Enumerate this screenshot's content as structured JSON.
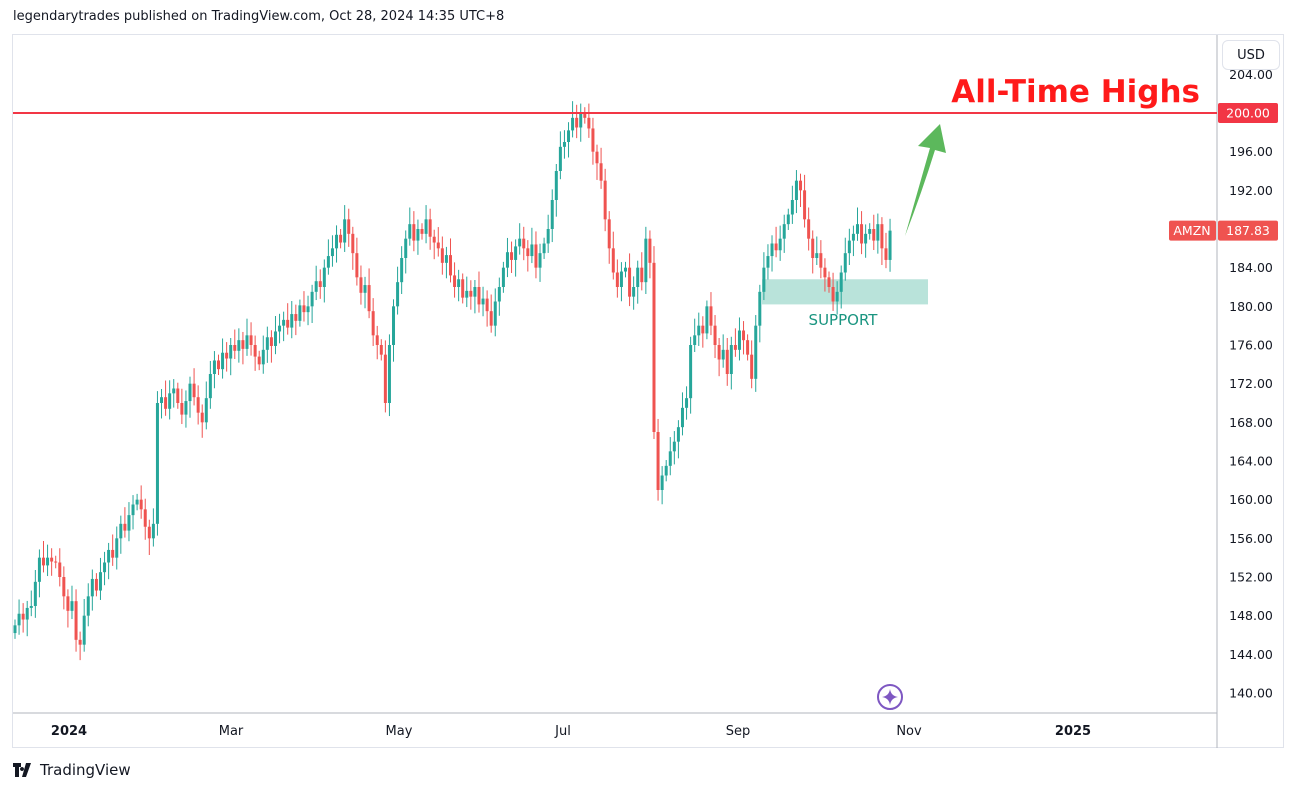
{
  "header": {
    "published": "legendarytrades published on TradingView.com, Oct 28, 2024 14:35 UTC+8"
  },
  "currency_button": "USD",
  "footer": {
    "brand": "TradingView"
  },
  "colors": {
    "up": "#26a69a",
    "down": "#ef5350",
    "ath_line": "#f23645",
    "ath_text": "#ff1a1a",
    "support_zone": "#b9e3da",
    "support_text": "#1a9580",
    "arrow": "#5cb85c",
    "sparkle": "#7e57c2"
  },
  "chart_data": {
    "type": "candlestick",
    "symbol": "AMZN",
    "last_price": "187.83",
    "ylim": [
      137,
      206
    ],
    "y_ticks": [
      "204.00",
      "196.00",
      "192.00",
      "184.00",
      "180.00",
      "176.00",
      "172.00",
      "168.00",
      "164.00",
      "160.00",
      "156.00",
      "152.00",
      "148.00",
      "144.00",
      "140.00"
    ],
    "x_ticks": [
      "2024",
      "Mar",
      "May",
      "Jul",
      "Sep",
      "Nov",
      "2025"
    ],
    "closes": [
      147,
      148.2,
      147.6,
      148.8,
      149,
      151.5,
      154,
      153.2,
      154,
      153.6,
      153.5,
      152,
      150,
      148.5,
      149.5,
      145.5,
      145,
      148,
      150,
      151.8,
      150.6,
      152.5,
      153.5,
      154.8,
      154,
      156,
      157.5,
      156.8,
      158.4,
      159.5,
      160,
      159,
      157.2,
      156,
      157.5,
      170,
      170.6,
      169.4,
      171,
      171.5,
      170,
      168.8,
      170.2,
      172,
      170.6,
      169,
      168,
      170.5,
      173,
      174.4,
      173.5,
      175.2,
      174.6,
      176,
      175.4,
      176.5,
      175.6,
      177,
      176,
      174.8,
      174,
      175.5,
      176.8,
      175.9,
      177.4,
      178,
      178.6,
      177.8,
      179.2,
      178.5,
      180.1,
      179.4,
      180,
      181.5,
      182.6,
      182,
      184,
      185.2,
      186,
      187.4,
      186.6,
      189,
      187.5,
      185.5,
      183,
      181.4,
      182.2,
      179.5,
      177,
      176,
      175,
      170,
      176,
      180,
      182.5,
      185,
      187,
      188.5,
      186.8,
      188,
      187.5,
      189,
      187.2,
      186.6,
      186,
      184.5,
      185.3,
      183.2,
      182,
      182.8,
      180.9,
      181.6,
      181,
      182,
      180.2,
      180.8,
      179.5,
      178,
      180.5,
      182,
      184,
      185.6,
      184.8,
      186.2,
      187,
      186,
      185.2,
      186.4,
      184,
      185.5,
      186.5,
      188,
      191,
      194,
      196.5,
      197,
      198.2,
      199.5,
      198.5,
      200,
      199.5,
      198.4,
      196,
      194.8,
      193,
      189,
      186,
      183.5,
      182,
      183.6,
      184,
      181,
      182,
      184,
      182.5,
      187,
      184.5,
      167,
      161,
      162.5,
      163.5,
      165,
      166,
      167.5,
      169.5,
      170.5,
      176,
      177,
      178,
      177.2,
      180,
      178,
      176,
      174.5,
      175.5,
      173,
      176,
      175.5,
      177.5,
      176.5,
      175,
      172.5,
      178,
      181.5,
      184,
      185.2,
      186.5,
      185.8,
      187,
      188.5,
      189.5,
      191,
      193,
      192,
      189,
      187,
      185,
      185.5,
      184,
      183,
      182,
      180.5,
      181.5,
      183.5,
      185.5,
      186.8,
      187.5,
      188.5,
      186.5,
      187.5,
      188,
      186.8,
      188.5,
      186,
      184.8,
      187.83
    ],
    "annotations": {
      "resistance": {
        "price": 200,
        "price_label": "200.00",
        "text": "All-Time Highs"
      },
      "support": {
        "low": 180.2,
        "high": 182.8,
        "text": "SUPPORT"
      }
    }
  }
}
